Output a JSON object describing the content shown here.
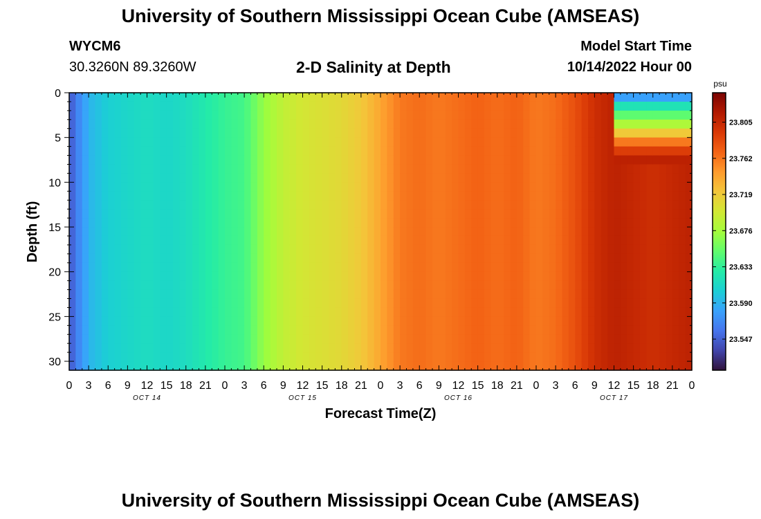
{
  "header": {
    "title": "University of Southern Mississippi Ocean Cube (AMSEAS)",
    "station_id": "WYCM6",
    "station_coords": "30.3260N  89.3260W",
    "subtitle": "2-D Salinity at Depth",
    "model_start_label": "Model Start Time",
    "model_start_value": "10/14/2022 Hour 00"
  },
  "footer": {
    "title": "University of Southern Mississippi Ocean Cube (AMSEAS)"
  },
  "chart_data": {
    "type": "heatmap",
    "title": "2-D Salinity at Depth",
    "xlabel": "Forecast Time(Z)",
    "ylabel": "Depth (ft)",
    "x_unit": "hours from 10/14/2022 00Z",
    "xlim": [
      0,
      96
    ],
    "ylim": [
      0,
      31
    ],
    "y_inverted": true,
    "x_tick_labels": [
      "0",
      "3",
      "6",
      "9",
      "12",
      "15",
      "18",
      "21",
      "0",
      "3",
      "6",
      "9",
      "12",
      "15",
      "18",
      "21",
      "0",
      "3",
      "6",
      "9",
      "12",
      "15",
      "18",
      "21",
      "0",
      "3",
      "6",
      "9",
      "12",
      "15",
      "18",
      "21",
      "0"
    ],
    "x_tick_values": [
      0,
      3,
      6,
      9,
      12,
      15,
      18,
      21,
      24,
      27,
      30,
      33,
      36,
      39,
      42,
      45,
      48,
      51,
      54,
      57,
      60,
      63,
      66,
      69,
      72,
      75,
      78,
      81,
      84,
      87,
      90,
      93,
      96
    ],
    "day_labels": [
      {
        "label": "OCT 14",
        "hour": 12
      },
      {
        "label": "OCT 15",
        "hour": 36
      },
      {
        "label": "OCT 16",
        "hour": 60
      },
      {
        "label": "OCT 17",
        "hour": 84
      }
    ],
    "y_tick_labels": [
      "0",
      "5",
      "10",
      "15",
      "20",
      "25",
      "30"
    ],
    "y_tick_values": [
      0,
      5,
      10,
      15,
      20,
      25,
      30
    ],
    "colorbar": {
      "unit": "psu",
      "range": [
        23.51,
        23.84
      ],
      "tick_labels": [
        "23.805",
        "23.762",
        "23.719",
        "23.676",
        "23.633",
        "23.590",
        "23.547"
      ],
      "tick_values": [
        23.805,
        23.762,
        23.719,
        23.676,
        23.633,
        23.59,
        23.547
      ]
    },
    "salinity_profile": {
      "hours": [
        0,
        1,
        3,
        6,
        9,
        12,
        15,
        18,
        21,
        24,
        27,
        30,
        33,
        36,
        39,
        42,
        45,
        48,
        51,
        54,
        57,
        60,
        63,
        66,
        69,
        72,
        75,
        78,
        81,
        84,
        87,
        90,
        93,
        96
      ],
      "values": [
        23.54,
        23.56,
        23.59,
        23.605,
        23.61,
        23.615,
        23.61,
        23.615,
        23.625,
        23.635,
        23.64,
        23.67,
        23.69,
        23.7,
        23.705,
        23.71,
        23.72,
        23.74,
        23.76,
        23.765,
        23.76,
        23.765,
        23.77,
        23.765,
        23.77,
        23.76,
        23.765,
        23.78,
        23.8,
        23.81,
        23.805,
        23.8,
        23.805,
        23.81
      ]
    },
    "stratified_top": {
      "start_hour": 84,
      "depths": [
        0,
        1,
        2,
        3,
        4,
        5,
        6,
        7
      ],
      "values": [
        23.58,
        23.62,
        23.65,
        23.68,
        23.72,
        23.76,
        23.79,
        23.81
      ]
    },
    "colormap": [
      "#30123b",
      "#4145ab",
      "#4675ed",
      "#39a2fc",
      "#1bcfd4",
      "#24eca6",
      "#61fc6c",
      "#a4fc3b",
      "#d1e834",
      "#f3c63a",
      "#fe9b2d",
      "#f36315",
      "#d93806",
      "#b11901",
      "#7a0402"
    ]
  }
}
